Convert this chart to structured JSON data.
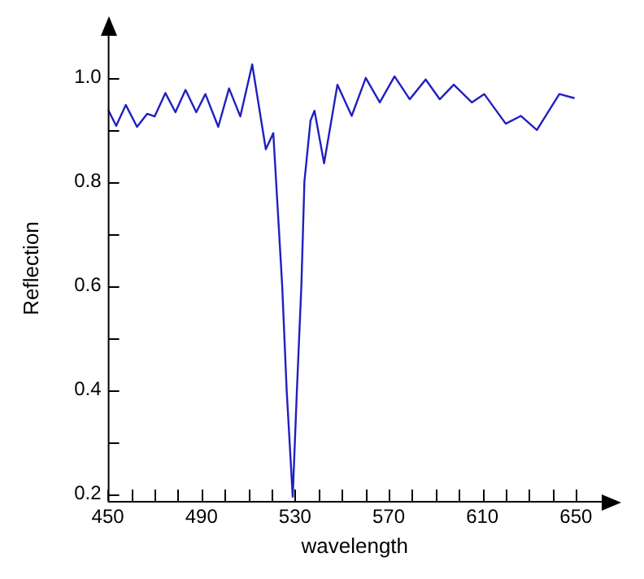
{
  "chart_data": {
    "type": "line",
    "xlabel": "wavelength",
    "ylabel": "Reflection",
    "marker": "none",
    "x": [
      450,
      453.6,
      457.7,
      462.5,
      466.8,
      470,
      474.6,
      478.9,
      483.2,
      487.8,
      491.7,
      497.2,
      501.8,
      506.6,
      511.7,
      517.5,
      520.7,
      524.5,
      526.4,
      529,
      530.8,
      532.7,
      534,
      536.6,
      538.3,
      542.4,
      548.1,
      554.2,
      560.2,
      566.2,
      572.5,
      579,
      585.8,
      591.8,
      597.8,
      605.5,
      610.8,
      620,
      626.5,
      633.3,
      642.9,
      649.4
    ],
    "series": [
      {
        "color": "#2020c0",
        "values": [
          0.939,
          0.907,
          0.947,
          0.905,
          0.93,
          0.925,
          0.97,
          0.933,
          0.976,
          0.933,
          0.968,
          0.905,
          0.979,
          0.925,
          1.025,
          0.862,
          0.893,
          0.6,
          0.4,
          0.194,
          0.4,
          0.6,
          0.8,
          0.917,
          0.936,
          0.835,
          0.986,
          0.926,
          0.999,
          0.952,
          1.002,
          0.958,
          0.996,
          0.958,
          0.986,
          0.952,
          0.968,
          0.911,
          0.926,
          0.899,
          0.968,
          0.96
        ]
      }
    ],
    "xlim": [
      450,
      661
    ],
    "xticks": [
      450,
      {
        "value": 460,
        "label": null
      },
      {
        "value": 470,
        "label": null
      },
      {
        "value": 480,
        "label": null
      },
      490,
      {
        "value": 500,
        "label": null
      },
      {
        "value": 510,
        "label": null
      },
      {
        "value": 520,
        "label": null
      },
      530,
      {
        "value": 540,
        "label": null
      },
      {
        "value": 550,
        "label": null
      },
      {
        "value": 560,
        "label": null
      },
      570,
      {
        "value": 580,
        "label": null
      },
      {
        "value": 590,
        "label": null
      },
      {
        "value": 600,
        "label": null
      },
      610,
      {
        "value": 620,
        "label": null
      },
      {
        "value": 630,
        "label": null
      },
      {
        "value": 640,
        "label": null
      },
      650
    ],
    "ylim": [
      0.186,
      1.08
    ],
    "yticks": [
      0.2,
      {
        "value": 0.3,
        "label": null
      },
      0.4,
      {
        "value": 0.5,
        "label": null
      },
      0.6,
      {
        "value": 0.7,
        "label": null
      },
      0.8,
      {
        "value": 0.9,
        "label": null
      },
      {
        "value": 1,
        "label": "1.0"
      }
    ]
  }
}
